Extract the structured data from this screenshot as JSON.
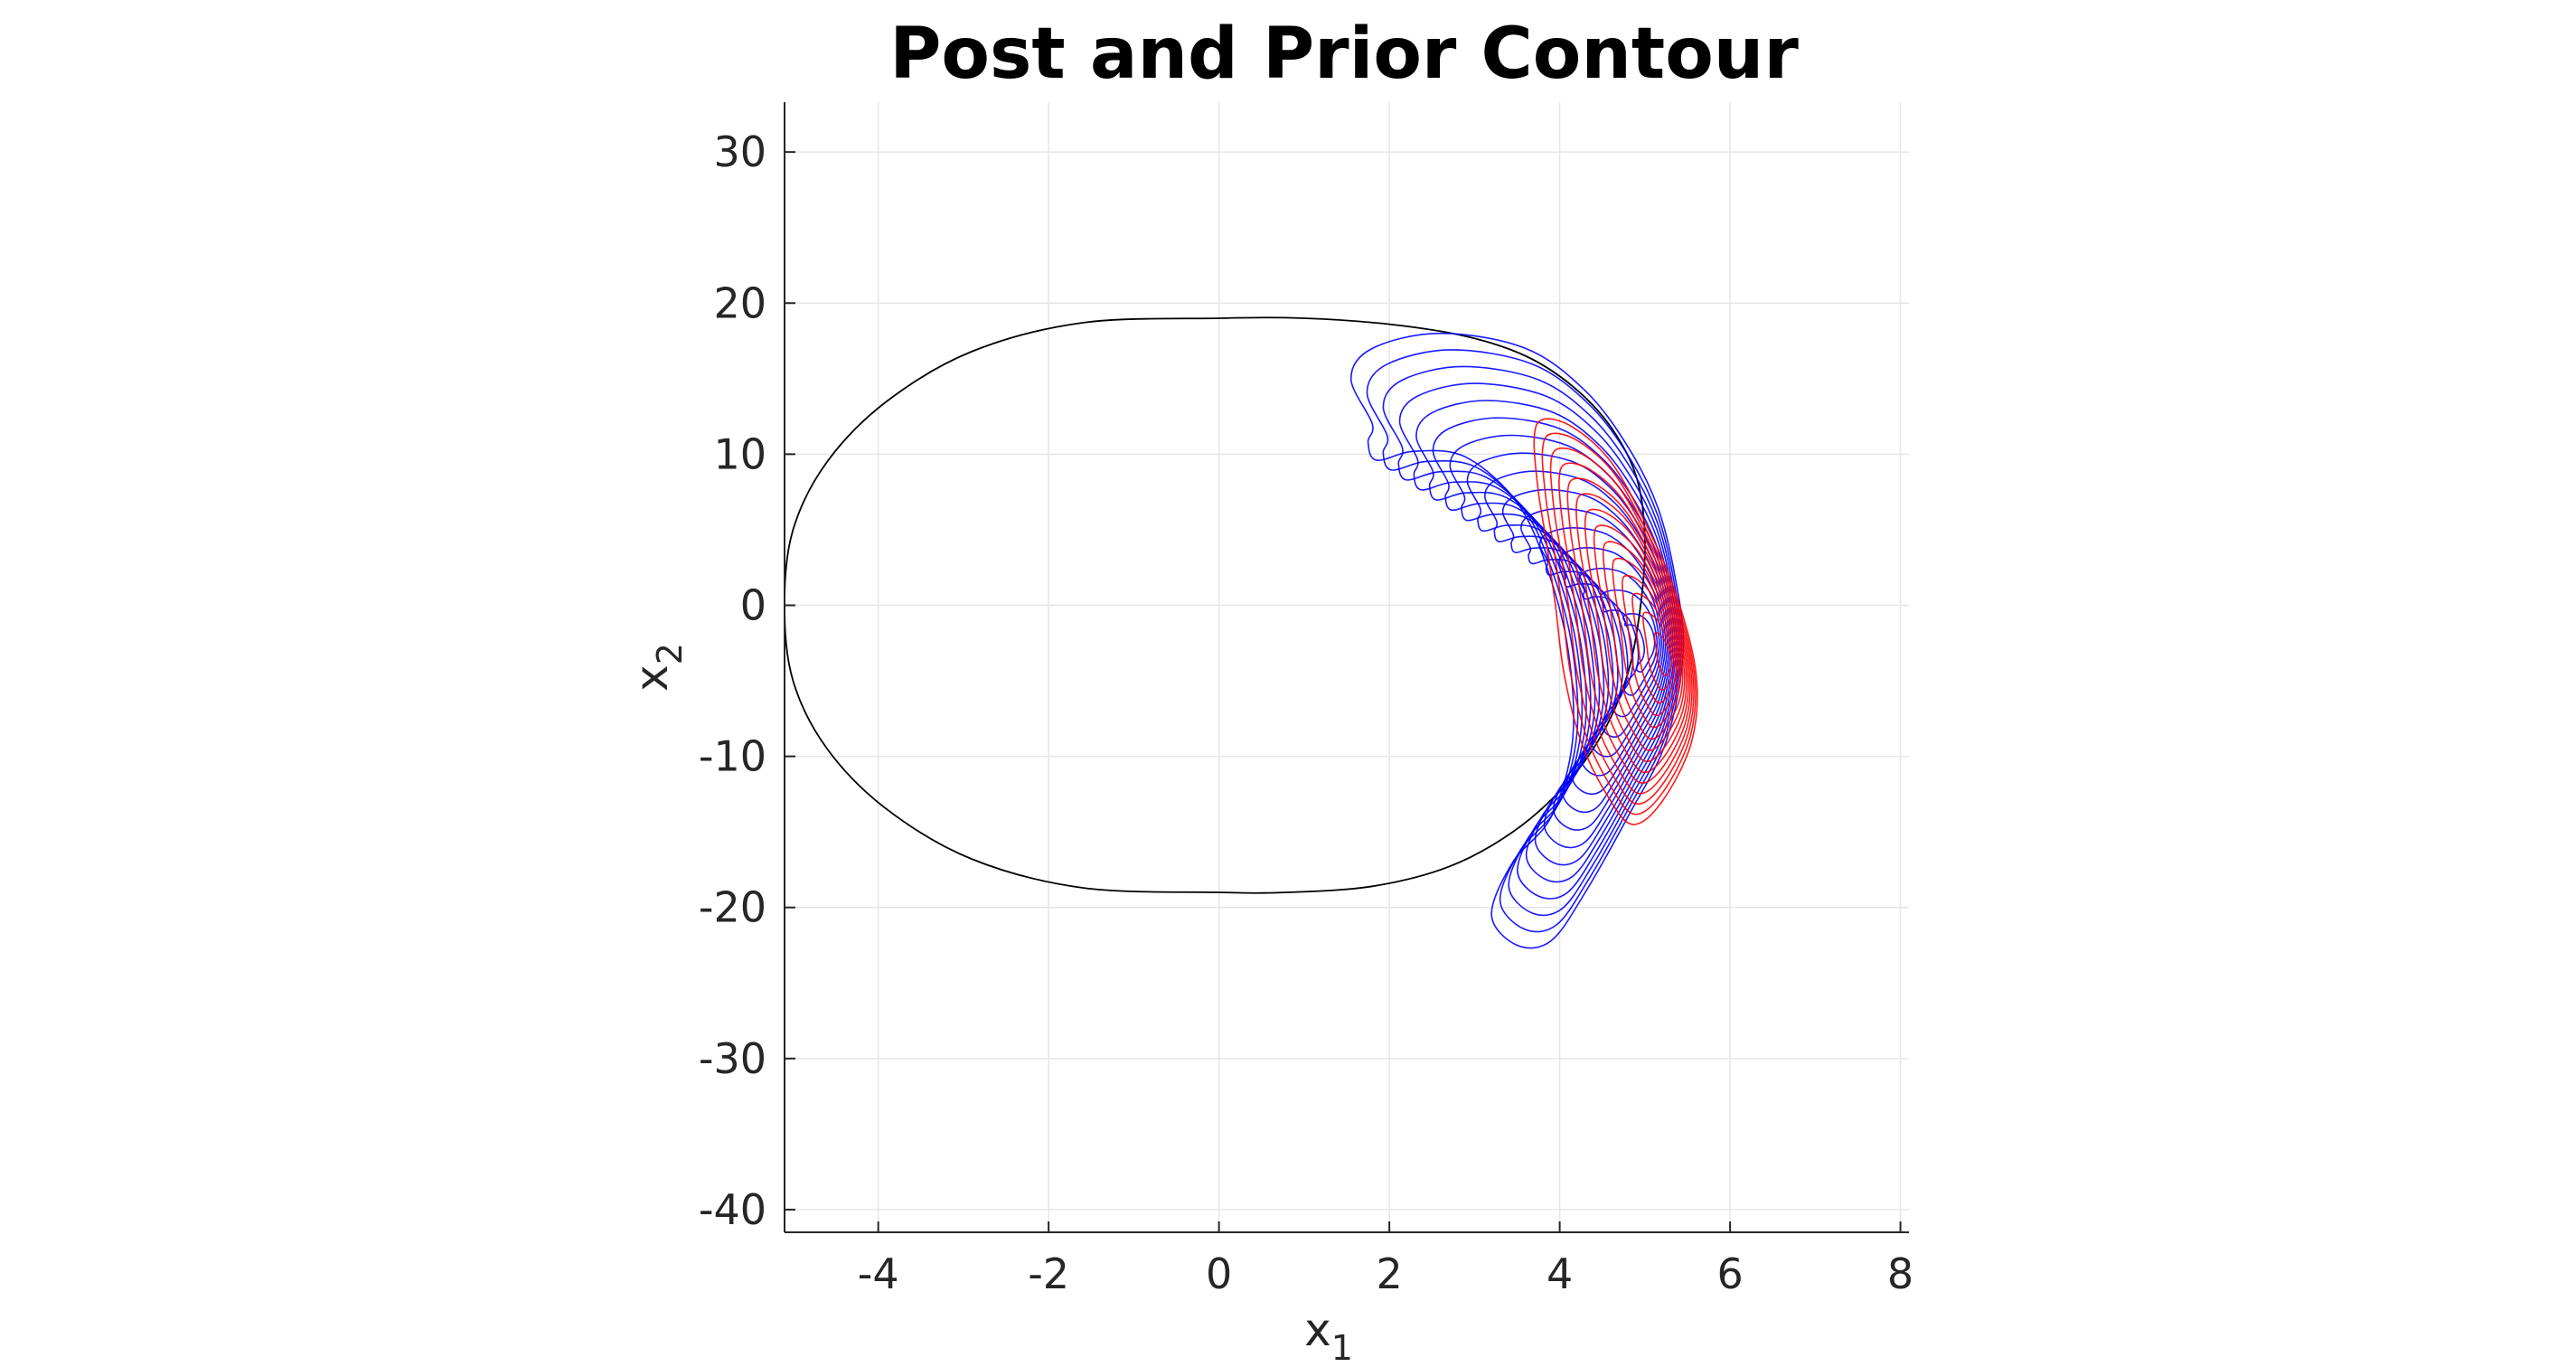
{
  "chart_data": {
    "type": "contour",
    "title": "Post and Prior Contour",
    "xlabel": "x",
    "xlabel_sub": "1",
    "ylabel": "x",
    "ylabel_sub": "2",
    "xlim": [
      -5.1,
      8.1
    ],
    "ylim": [
      -41.5,
      33.3
    ],
    "xticks": [
      -4,
      -2,
      0,
      2,
      4,
      6,
      8
    ],
    "yticks": [
      30,
      20,
      10,
      0,
      -10,
      -20,
      -30,
      -40
    ],
    "grid": true,
    "box": "left-bottom",
    "colors": {
      "trajectory": "#000000",
      "prior": "#0000ff",
      "posterior": "#ff0000",
      "grid": "#e6e6e6",
      "axis": "#262626"
    },
    "series": [
      {
        "kind": "trajectory",
        "color": "#000000",
        "shape": "closed limit cycle",
        "x_range": [
          -5.1,
          5.0
        ],
        "y_range": [
          -19.0,
          19.0
        ],
        "points": [
          [
            -5.1,
            0
          ],
          [
            -5.0,
            5
          ],
          [
            -4.6,
            9.5
          ],
          [
            -3.9,
            13.5
          ],
          [
            -2.9,
            16.8
          ],
          [
            -1.6,
            18.7
          ],
          [
            0,
            19.0
          ],
          [
            1.0,
            19.0
          ],
          [
            2.0,
            18.6
          ],
          [
            2.9,
            17.8
          ],
          [
            3.6,
            16.5
          ],
          [
            4.15,
            14.5
          ],
          [
            4.6,
            11.8
          ],
          [
            4.9,
            8.5
          ],
          [
            5.0,
            4.5
          ],
          [
            4.95,
            0
          ],
          [
            4.8,
            -4.5
          ],
          [
            4.5,
            -8.5
          ],
          [
            4.05,
            -12.0
          ],
          [
            3.45,
            -15.0
          ],
          [
            2.7,
            -17.3
          ],
          [
            1.8,
            -18.6
          ],
          [
            0.8,
            -19.0
          ],
          [
            0,
            -19.0
          ],
          [
            -1.6,
            -18.7
          ],
          [
            -2.9,
            -16.8
          ],
          [
            -3.9,
            -13.5
          ],
          [
            -4.6,
            -9.5
          ],
          [
            -5.0,
            -5
          ]
        ]
      },
      {
        "kind": "prior contours",
        "color": "#0000ff",
        "levels": 16,
        "center": [
          5.0,
          -2.5
        ],
        "extent_x": [
          1.5,
          5.6
        ],
        "extent_y": [
          -22.5,
          18.0
        ],
        "outer": [
          [
            1.8,
            12.0
          ],
          [
            1.55,
            15.0
          ],
          [
            1.8,
            17.0
          ],
          [
            2.6,
            18.0
          ],
          [
            3.6,
            17.0
          ],
          [
            4.3,
            14.2
          ],
          [
            4.8,
            10.5
          ],
          [
            5.15,
            6.5
          ],
          [
            5.35,
            2.0
          ],
          [
            5.45,
            -3.0
          ],
          [
            5.25,
            -9.0
          ],
          [
            4.8,
            -14.0
          ],
          [
            4.3,
            -19.0
          ],
          [
            3.9,
            -22.2
          ],
          [
            3.5,
            -22.5
          ],
          [
            3.2,
            -20.5
          ],
          [
            3.45,
            -17.0
          ],
          [
            3.9,
            -14.0
          ],
          [
            4.15,
            -9.0
          ],
          [
            4.1,
            -3.0
          ],
          [
            3.85,
            2.5
          ],
          [
            3.5,
            6.8
          ],
          [
            2.9,
            9.8
          ],
          [
            2.3,
            10.2
          ],
          [
            1.85,
            9.6
          ],
          [
            1.75,
            10.8
          ]
        ]
      },
      {
        "kind": "posterior contours",
        "color": "#ff0000",
        "levels": 14,
        "center": [
          5.2,
          -3.5
        ],
        "extent_x": [
          3.75,
          5.65
        ],
        "extent_y": [
          -14.5,
          12.5
        ],
        "outer": [
          [
            3.8,
            12.3
          ],
          [
            4.15,
            11.8
          ],
          [
            4.6,
            9.5
          ],
          [
            5.0,
            5.5
          ],
          [
            5.35,
            1.0
          ],
          [
            5.6,
            -4.5
          ],
          [
            5.55,
            -9.0
          ],
          [
            5.2,
            -13.0
          ],
          [
            4.85,
            -14.5
          ],
          [
            4.55,
            -12.5
          ],
          [
            4.25,
            -9.0
          ],
          [
            4.05,
            -4.5
          ],
          [
            3.95,
            0
          ],
          [
            3.85,
            4.0
          ],
          [
            3.75,
            7.5
          ],
          [
            3.7,
            11.0
          ]
        ]
      }
    ]
  }
}
